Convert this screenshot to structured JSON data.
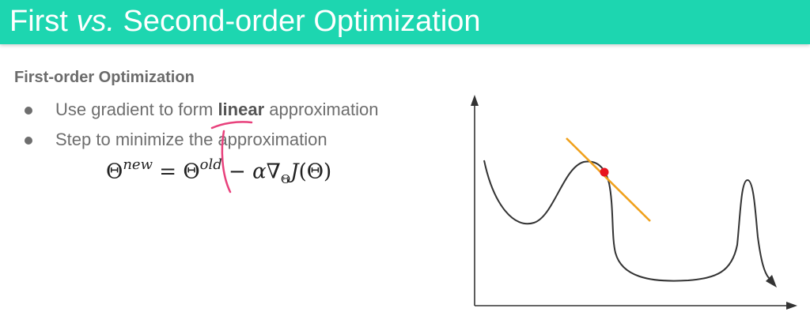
{
  "slide": {
    "title_prefix": "First ",
    "title_vs": "vs.",
    "title_suffix": " Second-order Optimization",
    "section_heading": "First-order Optimization",
    "bullets": [
      {
        "before": "Use gradient to form ",
        "bold": "linear",
        "after": " approximation"
      },
      {
        "before": "Step to minimize the approximation",
        "bold": "",
        "after": ""
      }
    ],
    "formula": {
      "lhs": "Θ",
      "lhs_sup": "new",
      "eq": " = ",
      "theta": "Θ",
      "old_sup": "old",
      "minus": " − ",
      "alpha": "α",
      "nabla": "∇",
      "nabla_sub": "Θ",
      "J": "J",
      "arg": "(Θ)"
    }
  },
  "colors": {
    "title_bar": "#1dd6b0",
    "curve": "#333333",
    "tangent": "#f0a11c",
    "point": "#e8141e",
    "annotation": "#e8417c"
  }
}
